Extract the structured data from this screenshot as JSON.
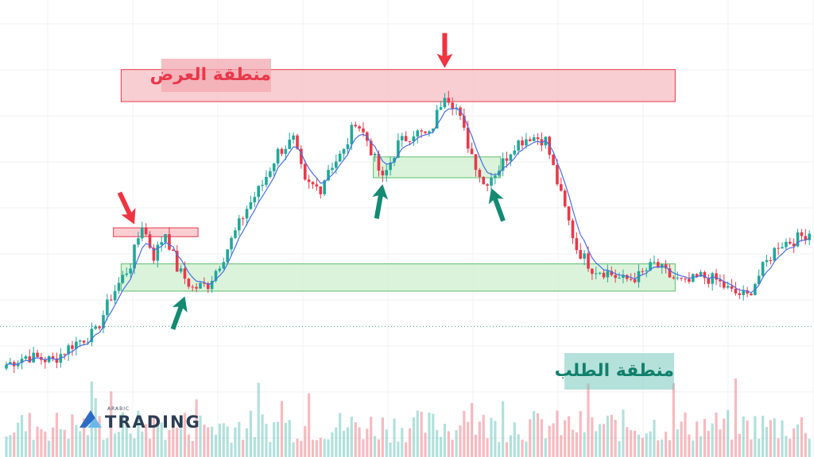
{
  "chart_data": {
    "type": "candlestick",
    "title": "",
    "xlabel": "",
    "ylabel": "",
    "grid": true,
    "ylim": [
      0,
      100
    ],
    "annotations": {
      "supply_zone_label": "منطقة العرض",
      "demand_zone_label": "منطقة الطلب",
      "supply_zone": {
        "x_start": 30,
        "x_end": 172,
        "y_low": 78.6,
        "y_high": 86.6
      },
      "demand_zone": {
        "x_start": 30,
        "x_end": 172,
        "y_low": 31.3,
        "y_high": 38.1
      },
      "minor_supply_zone": {
        "x_start": 28,
        "x_end": 49,
        "y_low": 44.9,
        "y_high": 47.1
      },
      "minor_demand_zone": {
        "x_start": 95,
        "x_end": 127,
        "y_low": 59.6,
        "y_high": 64.8
      },
      "support_line_level": 22.5,
      "red_arrows": [
        {
          "x": 33,
          "y": 48
        },
        {
          "x": 113,
          "y": 87
        }
      ],
      "green_arrows": [
        {
          "x": 46,
          "y": 30
        },
        {
          "x": 97,
          "y": 58
        },
        {
          "x": 125,
          "y": 57
        }
      ]
    },
    "ohlc_anchors": [
      [
        0,
        13
      ],
      [
        5,
        15
      ],
      [
        12,
        14
      ],
      [
        17,
        18
      ],
      [
        23,
        21
      ],
      [
        27,
        30
      ],
      [
        32,
        38
      ],
      [
        35,
        48
      ],
      [
        38,
        40
      ],
      [
        41,
        46
      ],
      [
        44,
        37
      ],
      [
        48,
        32
      ],
      [
        52,
        33
      ],
      [
        56,
        40
      ],
      [
        62,
        52
      ],
      [
        66,
        58
      ],
      [
        70,
        66
      ],
      [
        74,
        69
      ],
      [
        77,
        58
      ],
      [
        81,
        57
      ],
      [
        83,
        62
      ],
      [
        87,
        66
      ],
      [
        90,
        74
      ],
      [
        93,
        69
      ],
      [
        97,
        59
      ],
      [
        101,
        68
      ],
      [
        105,
        71
      ],
      [
        109,
        70
      ],
      [
        113,
        81
      ],
      [
        116,
        77
      ],
      [
        119,
        68
      ],
      [
        123,
        58
      ],
      [
        127,
        62
      ],
      [
        131,
        68
      ],
      [
        135,
        70
      ],
      [
        139,
        69
      ],
      [
        143,
        55
      ],
      [
        147,
        42
      ],
      [
        151,
        37
      ],
      [
        155,
        36
      ],
      [
        159,
        34
      ],
      [
        163,
        35
      ],
      [
        167,
        38
      ],
      [
        171,
        35
      ],
      [
        175,
        33
      ],
      [
        179,
        35
      ],
      [
        183,
        34
      ],
      [
        187,
        31
      ],
      [
        191,
        30
      ],
      [
        195,
        37
      ],
      [
        199,
        43
      ],
      [
        203,
        44
      ],
      [
        207,
        46
      ]
    ],
    "series": [
      {
        "values": "moving-average"
      },
      {
        "values": "volume"
      }
    ],
    "logo": {
      "small": "ARABIC",
      "word": "TRADING"
    },
    "colors": {
      "bull": "#1fa89a",
      "bear": "#e8394b",
      "ma": "#4a6ee0",
      "supply_fill": "#f7c2c7",
      "demand_fill": "#d2f0d2",
      "arrow_red": "#ef3340",
      "arrow_green": "#138a72",
      "grid": "#f1f2f4"
    }
  }
}
